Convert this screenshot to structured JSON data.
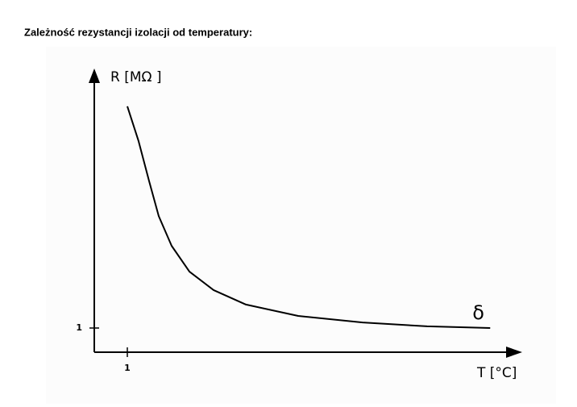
{
  "chart_data": {
    "type": "line",
    "title": "Zależność rezystancji izolacji od temperatury:",
    "ylabel": "R [MΩ ]",
    "xlabel": "T [°C]",
    "x": [
      1.0,
      1.34,
      1.66,
      1.95,
      2.34,
      2.88,
      3.61,
      4.59,
      6.17,
      8.12,
      10.07,
      11.98
    ],
    "series": [
      {
        "name": "δ",
        "color": "#000000",
        "values": [
          10.17,
          8.73,
          7.07,
          5.63,
          4.4,
          3.33,
          2.57,
          1.97,
          1.5,
          1.23,
          1.07,
          1.0
        ]
      }
    ],
    "xlim": [
      0,
      12.9
    ],
    "ylim": [
      0,
      11.7
    ],
    "xticks": [
      1
    ],
    "yticks": [
      1
    ]
  }
}
